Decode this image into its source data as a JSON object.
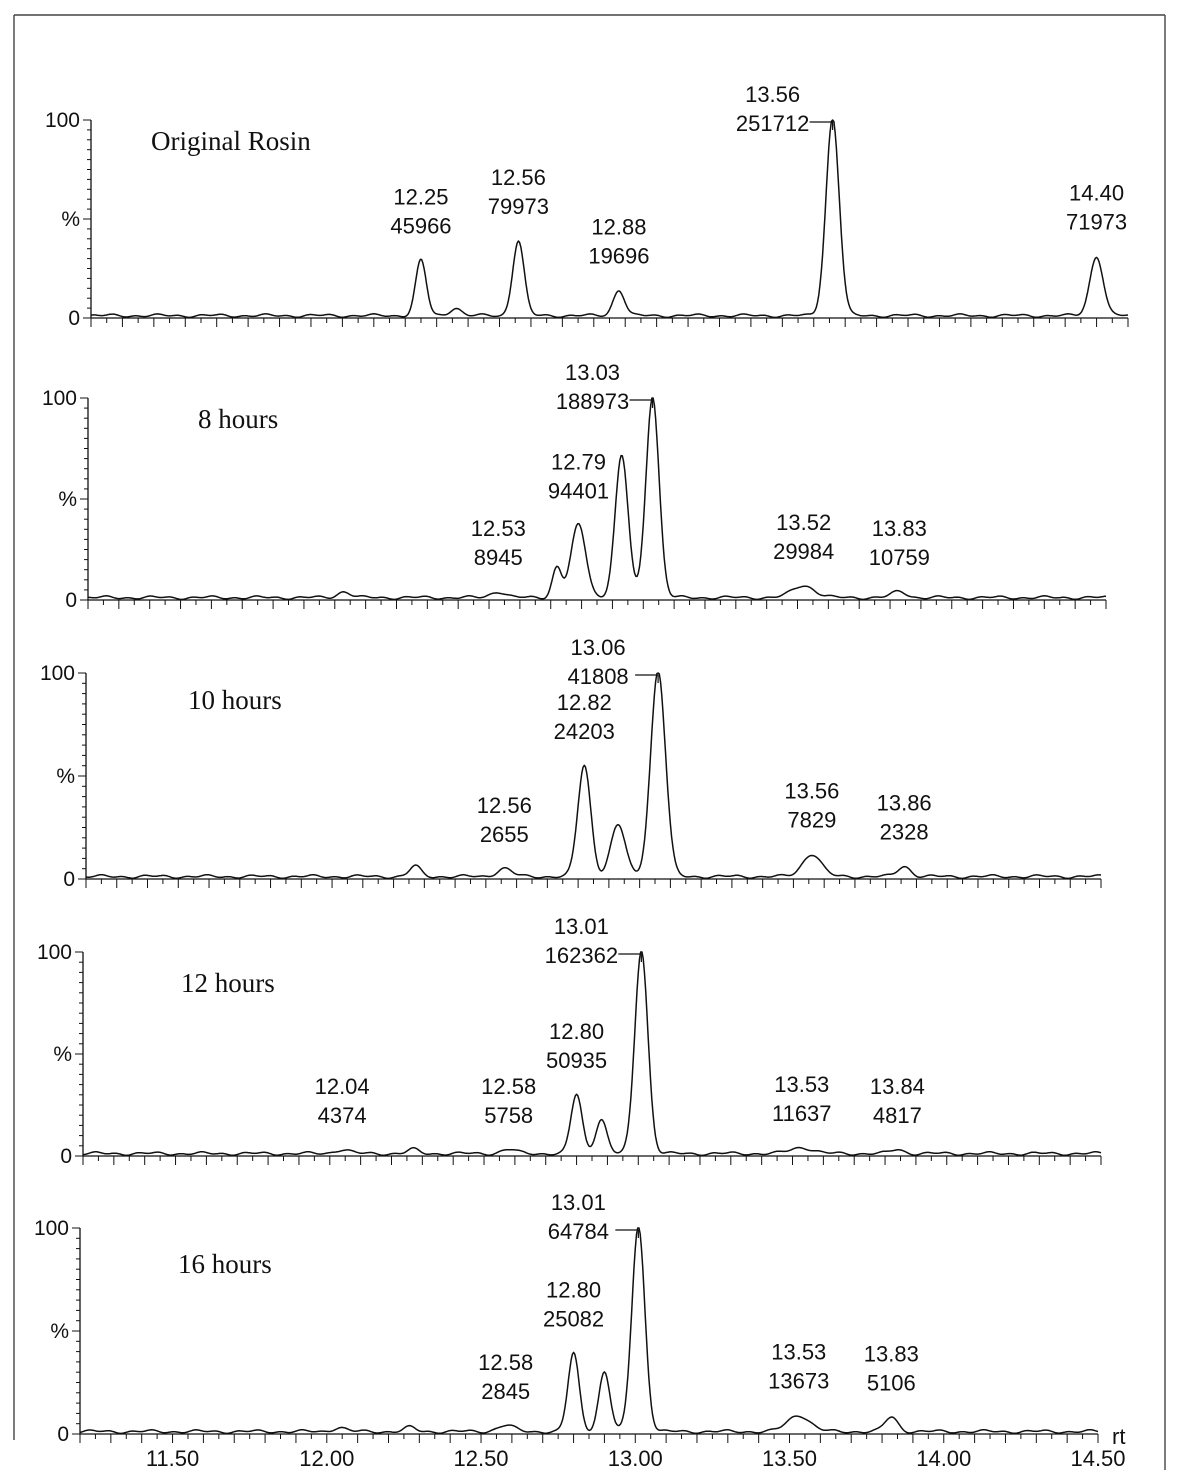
{
  "chart_data": {
    "type": "line",
    "xlim": [
      11.2,
      14.5
    ],
    "ylim": [
      0,
      100
    ],
    "y_tick_labels": [
      "0",
      "%",
      "100"
    ],
    "x_tick_labels": [
      "11.50",
      "12.00",
      "12.50",
      "13.00",
      "13.50",
      "14.00",
      "14.50"
    ],
    "x_axis_unit": "rt",
    "panels": [
      {
        "label": "Original Rosin",
        "peaks": [
          {
            "rt": 12.25,
            "area": 45966,
            "rel": 28,
            "w": 0.028
          },
          {
            "rt": 12.36,
            "area": null,
            "rel": 4,
            "w": 0.03
          },
          {
            "rt": 12.56,
            "area": 79973,
            "rel": 38,
            "w": 0.03
          },
          {
            "rt": 12.88,
            "area": 19696,
            "rel": 13,
            "w": 0.03
          },
          {
            "rt": 13.56,
            "area": 251712,
            "rel": 100,
            "w": 0.035
          },
          {
            "rt": 14.4,
            "area": 71973,
            "rel": 30,
            "w": 0.035
          }
        ]
      },
      {
        "label": "8 hours",
        "peaks": [
          {
            "rt": 12.03,
            "area": null,
            "rel": 3,
            "w": 0.035
          },
          {
            "rt": 12.53,
            "area": 8945,
            "rel": 3,
            "w": 0.04
          },
          {
            "rt": 12.72,
            "area": null,
            "rel": 15,
            "w": 0.025
          },
          {
            "rt": 12.79,
            "area": 94401,
            "rel": 36,
            "w": 0.04
          },
          {
            "rt": 12.93,
            "area": null,
            "rel": 70,
            "w": 0.035
          },
          {
            "rt": 13.03,
            "area": 188973,
            "rel": 100,
            "w": 0.035
          },
          {
            "rt": 13.52,
            "area": 29984,
            "rel": 6,
            "w": 0.06
          },
          {
            "rt": 13.83,
            "area": 10759,
            "rel": 3,
            "w": 0.04
          }
        ]
      },
      {
        "label": "10 hours",
        "peaks": [
          {
            "rt": 12.27,
            "area": null,
            "rel": 5,
            "w": 0.03
          },
          {
            "rt": 12.56,
            "area": 2655,
            "rel": 4,
            "w": 0.04
          },
          {
            "rt": 12.82,
            "area": 24203,
            "rel": 54,
            "w": 0.035
          },
          {
            "rt": 12.93,
            "area": null,
            "rel": 25,
            "w": 0.04
          },
          {
            "rt": 13.06,
            "area": 41808,
            "rel": 100,
            "w": 0.04
          },
          {
            "rt": 13.56,
            "area": 7829,
            "rel": 11,
            "w": 0.05
          },
          {
            "rt": 13.86,
            "area": 2328,
            "rel": 5,
            "w": 0.035
          }
        ]
      },
      {
        "label": "12 hours",
        "peaks": [
          {
            "rt": 12.04,
            "area": 4374,
            "rel": 2,
            "w": 0.04
          },
          {
            "rt": 12.27,
            "area": null,
            "rel": 2,
            "w": 0.03
          },
          {
            "rt": 12.58,
            "area": 5758,
            "rel": 2,
            "w": 0.04
          },
          {
            "rt": 12.8,
            "area": 50935,
            "rel": 29,
            "w": 0.03
          },
          {
            "rt": 12.88,
            "area": null,
            "rel": 17,
            "w": 0.03
          },
          {
            "rt": 13.01,
            "area": 162362,
            "rel": 100,
            "w": 0.035
          },
          {
            "rt": 13.53,
            "area": 11637,
            "rel": 3,
            "w": 0.06
          },
          {
            "rt": 13.84,
            "area": 4817,
            "rel": 2,
            "w": 0.035
          }
        ]
      },
      {
        "label": "16 hours",
        "peaks": [
          {
            "rt": 12.04,
            "area": null,
            "rel": 2,
            "w": 0.035
          },
          {
            "rt": 12.27,
            "area": null,
            "rel": 2,
            "w": 0.03
          },
          {
            "rt": 12.58,
            "area": 2845,
            "rel": 3,
            "w": 0.045
          },
          {
            "rt": 12.8,
            "area": 25082,
            "rel": 38,
            "w": 0.03
          },
          {
            "rt": 12.9,
            "area": null,
            "rel": 29,
            "w": 0.03
          },
          {
            "rt": 13.01,
            "area": 64784,
            "rel": 100,
            "w": 0.035
          },
          {
            "rt": 13.53,
            "area": 13673,
            "rel": 8,
            "w": 0.06
          },
          {
            "rt": 13.83,
            "area": 5106,
            "rel": 7,
            "w": 0.035
          }
        ]
      }
    ]
  }
}
